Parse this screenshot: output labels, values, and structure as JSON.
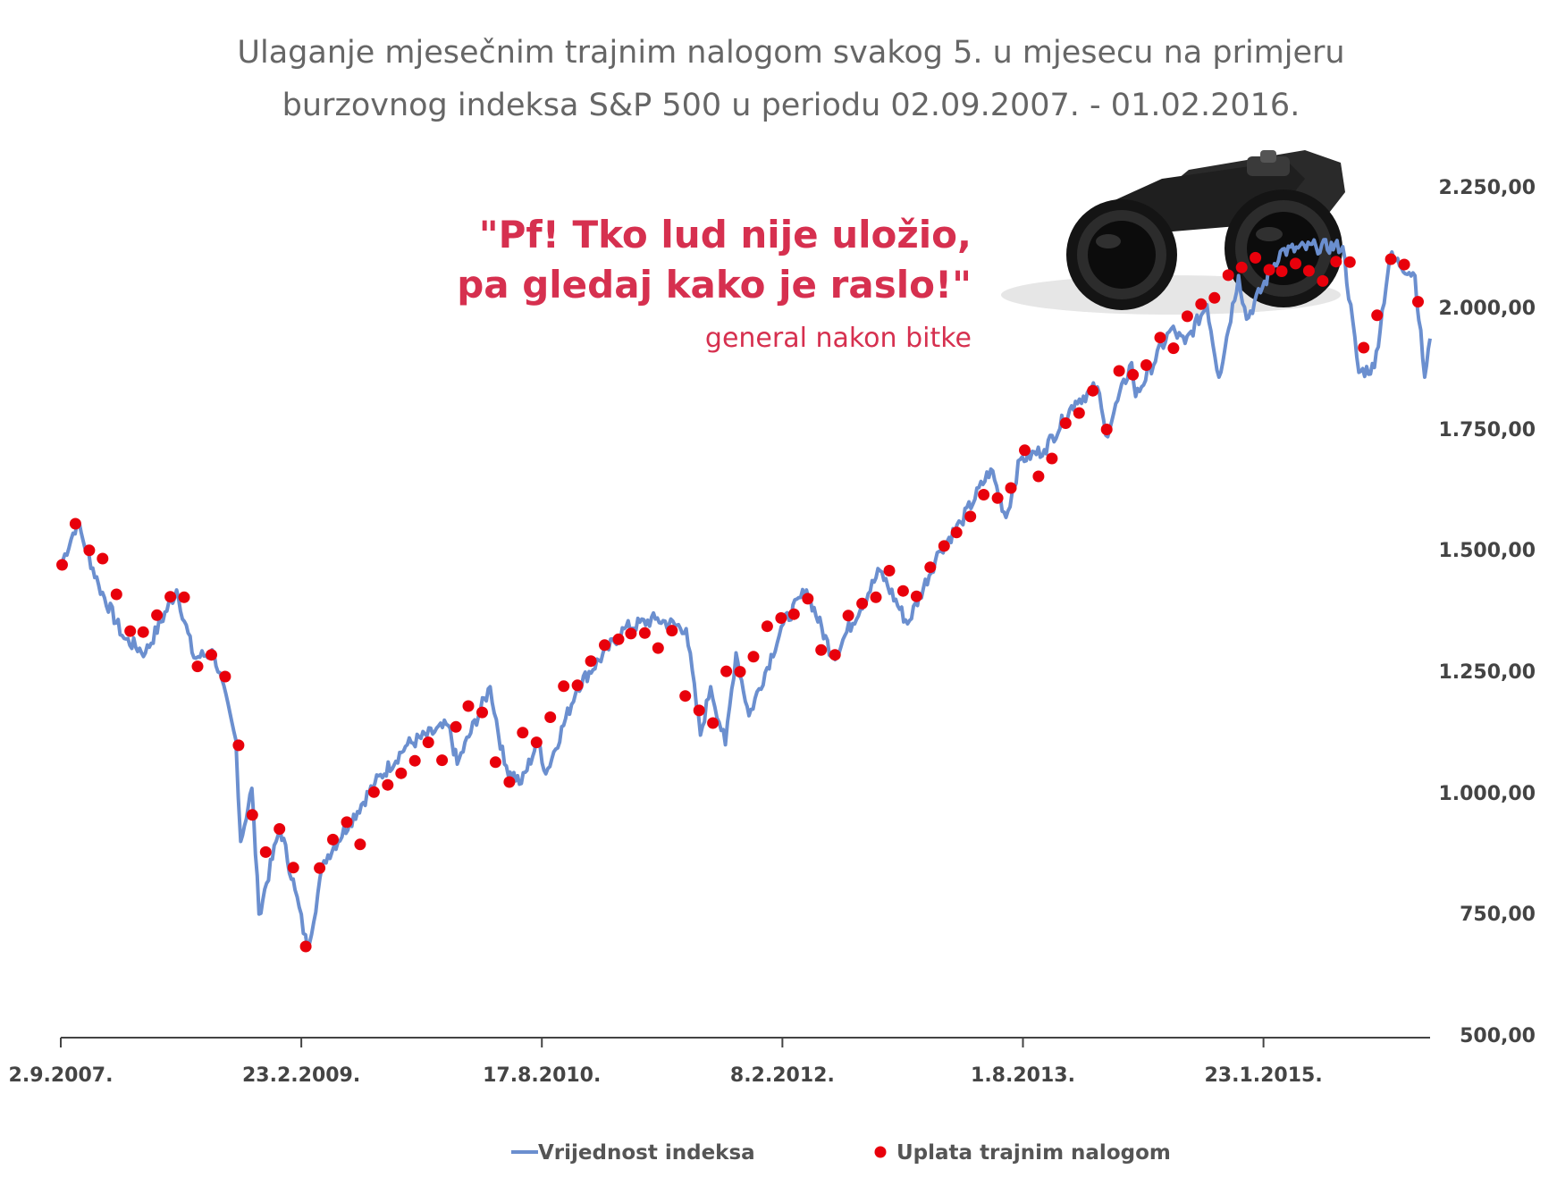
{
  "quote": {
    "line1": "\"Pf! Tko lud nije uložio,",
    "line2": "pa gledaj kako je raslo!\"",
    "attribution": "general nakon bitke"
  },
  "colors": {
    "line": "#6b8fcf",
    "dots": "#e8000b",
    "quote": "#d6304f",
    "axis": "#444444"
  },
  "chart_data": {
    "type": "line",
    "title": "Ulaganje mjesečnim trajnim nalogom svakog 5. u mjesecu na primjeru burzovnog indeksa S&P 500 u periodu 02.09.2007. - 01.02.2016.",
    "title_lines": [
      "Ulaganje mjesečnim trajnim nalogom svakog 5. u mjesecu na primjeru",
      "burzovnog indeksa S&P 500 u periodu 02.09.2007. - 01.02.2016."
    ],
    "xlabel": "",
    "ylabel": "",
    "x_range": [
      "2007-09-02",
      "2016-02-01"
    ],
    "ylim": [
      500,
      2250
    ],
    "y_ticks": [
      500,
      750,
      1000,
      1250,
      1500,
      1750,
      2000,
      2250
    ],
    "y_tick_labels": [
      "500,00",
      "750,00",
      "1.000,00",
      "1.250,00",
      "1.500,00",
      "1.750,00",
      "2.000,00",
      "2.250,00"
    ],
    "x_ticks": [
      "2007-09-02",
      "2009-02-23",
      "2010-08-17",
      "2012-02-08",
      "2013-08-01",
      "2015-01-23"
    ],
    "x_tick_labels": [
      "2.9.2007.",
      "23.2.2009.",
      "17.8.2010.",
      "8.2.2012.",
      "1.8.2013.",
      "23.1.2015."
    ],
    "grid": false,
    "legend_position": "bottom",
    "series": [
      {
        "name": "Vrijednost indeksa",
        "style": "line",
        "x": [
          "2007-09-02",
          "2007-10-09",
          "2007-11-26",
          "2008-01-22",
          "2008-03-10",
          "2008-05-19",
          "2008-06-27",
          "2008-08-11",
          "2008-09-29",
          "2008-10-10",
          "2008-11-04",
          "2008-11-20",
          "2009-01-06",
          "2009-02-09",
          "2009-03-09",
          "2009-04-15",
          "2009-06-12",
          "2009-08-07",
          "2009-10-19",
          "2010-01-19",
          "2010-02-08",
          "2010-04-23",
          "2010-05-25",
          "2010-07-02",
          "2010-08-09",
          "2010-08-26",
          "2010-11-05",
          "2011-02-18",
          "2011-04-29",
          "2011-07-07",
          "2011-08-08",
          "2011-08-31",
          "2011-10-03",
          "2011-10-27",
          "2011-11-25",
          "2012-02-10",
          "2012-04-02",
          "2012-06-01",
          "2012-09-14",
          "2012-11-15",
          "2013-01-25",
          "2013-03-15",
          "2013-05-21",
          "2013-06-24",
          "2013-07-26",
          "2013-09-18",
          "2013-11-27",
          "2014-01-15",
          "2014-02-03",
          "2014-04-02",
          "2014-04-11",
          "2014-06-30",
          "2014-07-31",
          "2014-09-18",
          "2014-10-15",
          "2014-11-28",
          "2014-12-16",
          "2015-03-02",
          "2015-05-21",
          "2015-07-20",
          "2015-08-25",
          "2015-09-29",
          "2015-11-03",
          "2015-12-29",
          "2016-01-20",
          "2016-02-01"
        ],
        "values": [
          1470,
          1560,
          1430,
          1320,
          1290,
          1420,
          1280,
          1290,
          1110,
          900,
          1010,
          750,
          930,
          800,
          677,
          860,
          940,
          1020,
          1100,
          1140,
          1060,
          1220,
          1060,
          1020,
          1110,
          1040,
          1220,
          1340,
          1360,
          1340,
          1120,
          1220,
          1100,
          1290,
          1160,
          1350,
          1420,
          1280,
          1460,
          1350,
          1500,
          1560,
          1670,
          1570,
          1690,
          1710,
          1810,
          1840,
          1740,
          1890,
          1820,
          1960,
          1930,
          2010,
          1860,
          2070,
          1980,
          2120,
          2130,
          2130,
          1870,
          1880,
          2110,
          2070,
          1860,
          1940
        ]
      },
      {
        "name": "Uplata trajnim nalogom",
        "style": "markers",
        "x": [
          "2007-09-05",
          "2007-10-05",
          "2007-11-05",
          "2007-12-05",
          "2008-01-05",
          "2008-02-05",
          "2008-03-05",
          "2008-04-05",
          "2008-05-05",
          "2008-06-05",
          "2008-07-05",
          "2008-08-05",
          "2008-09-05",
          "2008-10-05",
          "2008-11-05",
          "2008-12-05",
          "2009-01-05",
          "2009-02-05",
          "2009-03-05",
          "2009-04-05",
          "2009-05-05",
          "2009-06-05",
          "2009-07-05",
          "2009-08-05",
          "2009-09-05",
          "2009-10-05",
          "2009-11-05",
          "2009-12-05",
          "2010-01-05",
          "2010-02-05",
          "2010-03-05",
          "2010-04-05",
          "2010-05-05",
          "2010-06-05",
          "2010-07-05",
          "2010-08-05",
          "2010-09-05",
          "2010-10-05",
          "2010-11-05",
          "2010-12-05",
          "2011-01-05",
          "2011-02-05",
          "2011-03-05",
          "2011-04-05",
          "2011-05-05",
          "2011-06-05",
          "2011-07-05",
          "2011-08-05",
          "2011-09-05",
          "2011-10-05",
          "2011-11-05",
          "2011-12-05",
          "2012-01-05",
          "2012-02-05",
          "2012-03-05",
          "2012-04-05",
          "2012-05-05",
          "2012-06-05",
          "2012-07-05",
          "2012-08-05",
          "2012-09-05",
          "2012-10-05",
          "2012-11-05",
          "2012-12-05",
          "2013-01-05",
          "2013-02-05",
          "2013-03-05",
          "2013-04-05",
          "2013-05-05",
          "2013-06-05",
          "2013-07-05",
          "2013-08-05",
          "2013-09-05",
          "2013-10-05",
          "2013-11-05",
          "2013-12-05",
          "2014-01-05",
          "2014-02-05",
          "2014-03-05",
          "2014-04-05",
          "2014-05-05",
          "2014-06-05",
          "2014-07-05",
          "2014-08-05",
          "2014-09-05",
          "2014-10-05",
          "2014-11-05",
          "2014-12-05",
          "2015-01-05",
          "2015-02-05",
          "2015-03-05",
          "2015-04-05",
          "2015-05-05",
          "2015-06-05",
          "2015-07-05",
          "2015-08-05",
          "2015-09-05",
          "2015-10-05",
          "2015-11-05",
          "2015-12-05",
          "2016-01-05"
        ],
        "values": [
          1472,
          1557,
          1502,
          1485,
          1411,
          1335,
          1333,
          1368,
          1406,
          1405,
          1262,
          1286,
          1241,
          1099,
          955,
          878,
          926,
          846,
          683,
          845,
          904,
          940,
          894,
          1002,
          1017,
          1041,
          1067,
          1105,
          1068,
          1137,
          1180,
          1167,
          1064,
          1023,
          1125,
          1105,
          1157,
          1221,
          1223,
          1273,
          1306,
          1318,
          1330,
          1331,
          1300,
          1336,
          1201,
          1171,
          1145,
          1252,
          1251,
          1282,
          1345,
          1362,
          1370,
          1402,
          1296,
          1286,
          1367,
          1392,
          1405,
          1460,
          1418,
          1407,
          1467,
          1511,
          1539,
          1572,
          1617,
          1610,
          1631,
          1709,
          1655,
          1692,
          1765,
          1786,
          1832,
          1752,
          1873,
          1865,
          1885,
          1942,
          1920,
          1986,
          2011,
          2024,
          2071,
          2087,
          2107,
          2082,
          2079,
          2095,
          2080,
          2059,
          2099,
          2098,
          1921,
          1988,
          2104,
          2093,
          2016
        ]
      }
    ]
  },
  "legend": {
    "line_label": "Vrijednost indeksa",
    "dot_label": "Uplata trajnim nalogom"
  },
  "image": {
    "icon": "binoculars-icon"
  }
}
